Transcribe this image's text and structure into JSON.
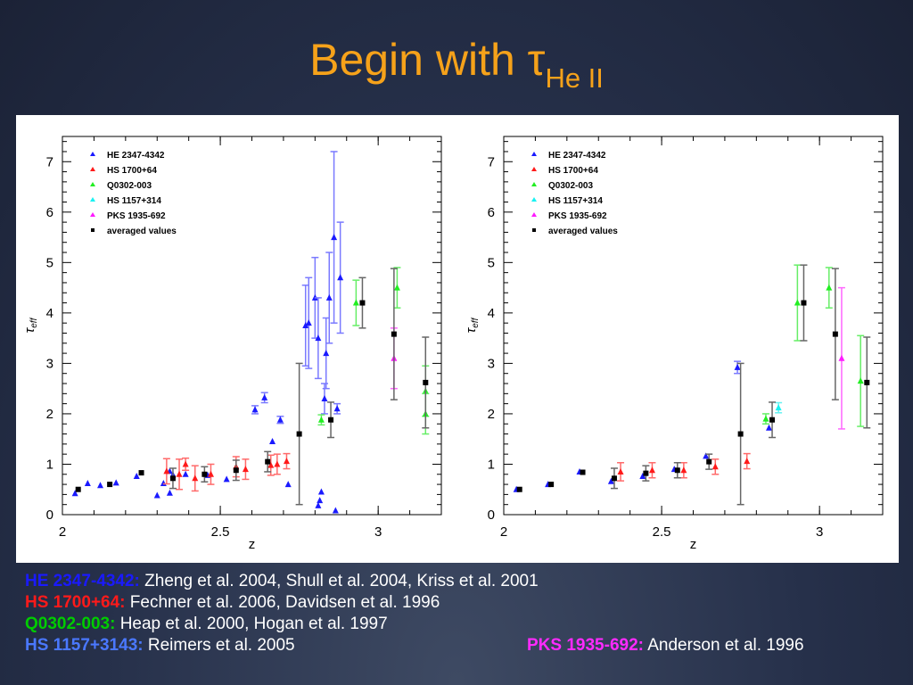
{
  "title": {
    "main": "Begin with τ",
    "sub": "He II"
  },
  "colors": {
    "title": "#f6a21a",
    "HE": "#1a1aff",
    "HS1700": "#ff1a1a",
    "Q0302": "#22ee22",
    "HS1157": "#19f2f2",
    "PKS": "#ff1aff",
    "avg": "#000000"
  },
  "references": [
    {
      "name": "HE 2347-4342:",
      "text": "Zheng et al. 2004, Shull et al. 2004, Kriss et al. 2001",
      "color": "#1a1aff"
    },
    {
      "name": "HS 1700+64:",
      "text": "Fechner et al. 2006, Davidsen et al. 1996",
      "color": "#ff1a1a"
    },
    {
      "name": "Q0302-003:",
      "text": "Heap et al. 2000, Hogan et al. 1997",
      "color": "#00cc00"
    },
    {
      "name": "HS 1157+3143:",
      "text": "Reimers et al. 2005",
      "color": "#4a78ff"
    },
    {
      "name": "PKS 1935-692:",
      "text": "Anderson et al. 1996",
      "color": "#ff2aff"
    }
  ],
  "chart_data": [
    {
      "type": "scatter",
      "xlabel": "z",
      "ylabel": "τ_eff",
      "xlim": [
        2.0,
        3.2
      ],
      "ylim": [
        0,
        7.5
      ],
      "xticks": [
        "2",
        "2.5",
        "3"
      ],
      "yticks": [
        "0",
        "1",
        "2",
        "3",
        "4",
        "5",
        "6",
        "7"
      ],
      "legend": [
        "HE 2347-4342",
        "HS 1700+64",
        "Q0302-003",
        "HS 1157+314",
        "PKS 1935-692",
        "averaged values"
      ],
      "series": [
        {
          "name": "HE 2347-4342",
          "key": "HE",
          "marker": "triangle",
          "points": [
            {
              "x": 2.04,
              "y": 0.42,
              "e": 0.03
            },
            {
              "x": 2.08,
              "y": 0.62,
              "e": 0.03
            },
            {
              "x": 2.12,
              "y": 0.58,
              "e": 0.03
            },
            {
              "x": 2.17,
              "y": 0.63,
              "e": 0.03
            },
            {
              "x": 2.235,
              "y": 0.76,
              "e": 0.03
            },
            {
              "x": 2.3,
              "y": 0.38,
              "e": 0.05
            },
            {
              "x": 2.32,
              "y": 0.62,
              "e": 0.04
            },
            {
              "x": 2.34,
              "y": 0.43,
              "e": 0.04
            },
            {
              "x": 2.34,
              "y": 0.86,
              "e": 0.05
            },
            {
              "x": 2.35,
              "y": 0.79,
              "e": 0.04
            },
            {
              "x": 2.39,
              "y": 0.8,
              "e": 0.04
            },
            {
              "x": 2.46,
              "y": 0.78,
              "e": 0.05
            },
            {
              "x": 2.52,
              "y": 0.7,
              "e": 0.05
            },
            {
              "x": 2.61,
              "y": 2.08,
              "e": 0.08
            },
            {
              "x": 2.64,
              "y": 2.32,
              "e": 0.1
            },
            {
              "x": 2.665,
              "y": 1.45,
              "e": 0.06
            },
            {
              "x": 2.69,
              "y": 1.88,
              "e": 0.07
            },
            {
              "x": 2.715,
              "y": 0.6,
              "e": 0.05
            },
            {
              "x": 2.77,
              "y": 3.75,
              "e": 0.8
            },
            {
              "x": 2.78,
              "y": 3.8,
              "e": 0.9
            },
            {
              "x": 2.8,
              "y": 4.3,
              "e": 0.8
            },
            {
              "x": 2.81,
              "y": 3.5,
              "e": 0.8
            },
            {
              "x": 2.81,
              "y": 0.18,
              "e": 0.05
            },
            {
              "x": 2.815,
              "y": 0.28,
              "e": 0.05
            },
            {
              "x": 2.82,
              "y": 0.45,
              "e": 0.05
            },
            {
              "x": 2.83,
              "y": 2.3,
              "e": 0.3
            },
            {
              "x": 2.835,
              "y": 3.2,
              "e": 0.7
            },
            {
              "x": 2.845,
              "y": 4.3,
              "e": 0.9
            },
            {
              "x": 2.86,
              "y": 5.5,
              "e": 1.7
            },
            {
              "x": 2.865,
              "y": 0.08,
              "e": 0.03
            },
            {
              "x": 2.87,
              "y": 2.1,
              "e": 0.1
            },
            {
              "x": 2.88,
              "y": 4.7,
              "e": 1.1
            }
          ]
        },
        {
          "name": "HS 1700+64",
          "key": "HS1700",
          "marker": "triangle",
          "points": [
            {
              "x": 2.33,
              "y": 0.86,
              "e": 0.25
            },
            {
              "x": 2.37,
              "y": 0.8,
              "e": 0.3
            },
            {
              "x": 2.39,
              "y": 1.0,
              "e": 0.12
            },
            {
              "x": 2.42,
              "y": 0.72,
              "e": 0.25
            },
            {
              "x": 2.47,
              "y": 0.8,
              "e": 0.2
            },
            {
              "x": 2.55,
              "y": 0.95,
              "e": 0.2
            },
            {
              "x": 2.58,
              "y": 0.9,
              "e": 0.2
            },
            {
              "x": 2.66,
              "y": 0.98,
              "e": 0.2
            },
            {
              "x": 2.68,
              "y": 1.0,
              "e": 0.2
            },
            {
              "x": 2.71,
              "y": 1.06,
              "e": 0.15
            }
          ]
        },
        {
          "name": "Q0302-003",
          "key": "Q0302",
          "marker": "triangle",
          "points": [
            {
              "x": 2.82,
              "y": 1.88,
              "e": 0.1
            },
            {
              "x": 2.93,
              "y": 4.2,
              "e": 0.45
            },
            {
              "x": 3.06,
              "y": 4.5,
              "e": 0.4
            },
            {
              "x": 3.15,
              "y": 2.45,
              "e": 0.5
            },
            {
              "x": 3.15,
              "y": 2.0,
              "e": 0.4
            }
          ]
        },
        {
          "name": "PKS 1935-692",
          "key": "PKS",
          "marker": "triangle",
          "points": [
            {
              "x": 3.05,
              "y": 3.1,
              "e": 0.6
            }
          ]
        },
        {
          "name": "averaged values",
          "key": "avg",
          "marker": "square",
          "points": [
            {
              "x": 2.05,
              "y": 0.5,
              "e": 0.03
            },
            {
              "x": 2.15,
              "y": 0.6,
              "e": 0.03
            },
            {
              "x": 2.25,
              "y": 0.83,
              "e": 0.04
            },
            {
              "x": 2.35,
              "y": 0.72,
              "e": 0.2
            },
            {
              "x": 2.45,
              "y": 0.8,
              "e": 0.15
            },
            {
              "x": 2.55,
              "y": 0.88,
              "e": 0.2
            },
            {
              "x": 2.65,
              "y": 1.05,
              "e": 0.2
            },
            {
              "x": 2.75,
              "y": 1.6,
              "e": 1.4
            },
            {
              "x": 2.85,
              "y": 1.88,
              "e": 0.35
            },
            {
              "x": 2.95,
              "y": 4.2,
              "e": 0.5
            },
            {
              "x": 3.05,
              "y": 3.58,
              "e": 1.3
            },
            {
              "x": 3.15,
              "y": 2.62,
              "e": 0.9
            }
          ]
        }
      ]
    },
    {
      "type": "scatter",
      "xlabel": "z",
      "ylabel": "τ_eff",
      "xlim": [
        2.0,
        3.2
      ],
      "ylim": [
        0,
        7.5
      ],
      "xticks": [
        "2",
        "2.5",
        "3"
      ],
      "yticks": [
        "0",
        "1",
        "2",
        "3",
        "4",
        "5",
        "6",
        "7"
      ],
      "legend": [
        "HE 2347-4342",
        "HS 1700+64",
        "Q0302-003",
        "HS 1157+314",
        "PKS 1935-692",
        "averaged values"
      ],
      "series": [
        {
          "name": "HE 2347-4342",
          "key": "HE",
          "marker": "triangle",
          "points": [
            {
              "x": 2.04,
              "y": 0.5,
              "e": 0.03
            },
            {
              "x": 2.14,
              "y": 0.6,
              "e": 0.03
            },
            {
              "x": 2.24,
              "y": 0.85,
              "e": 0.03
            },
            {
              "x": 2.34,
              "y": 0.66,
              "e": 0.03
            },
            {
              "x": 2.44,
              "y": 0.76,
              "e": 0.03
            },
            {
              "x": 2.54,
              "y": 0.9,
              "e": 0.03
            },
            {
              "x": 2.64,
              "y": 1.16,
              "e": 0.03
            },
            {
              "x": 2.74,
              "y": 2.92,
              "e": 0.12
            },
            {
              "x": 2.84,
              "y": 1.72,
              "e": 0.06
            }
          ]
        },
        {
          "name": "HS 1700+64",
          "key": "HS1700",
          "marker": "triangle",
          "points": [
            {
              "x": 2.37,
              "y": 0.85,
              "e": 0.18
            },
            {
              "x": 2.47,
              "y": 0.88,
              "e": 0.15
            },
            {
              "x": 2.57,
              "y": 0.88,
              "e": 0.15
            },
            {
              "x": 2.67,
              "y": 0.95,
              "e": 0.15
            },
            {
              "x": 2.77,
              "y": 1.06,
              "e": 0.15
            }
          ]
        },
        {
          "name": "Q0302-003",
          "key": "Q0302",
          "marker": "triangle",
          "points": [
            {
              "x": 2.83,
              "y": 1.9,
              "e": 0.1
            },
            {
              "x": 2.93,
              "y": 4.2,
              "e": 0.75
            },
            {
              "x": 3.03,
              "y": 4.5,
              "e": 0.4
            },
            {
              "x": 3.13,
              "y": 2.65,
              "e": 0.9
            }
          ]
        },
        {
          "name": "HS 1157+314",
          "key": "HS1157",
          "marker": "triangle",
          "points": [
            {
              "x": 2.87,
              "y": 2.12,
              "e": 0.1
            }
          ]
        },
        {
          "name": "PKS 1935-692",
          "key": "PKS",
          "marker": "triangle",
          "points": [
            {
              "x": 3.07,
              "y": 3.1,
              "e": 1.4
            }
          ]
        },
        {
          "name": "averaged values",
          "key": "avg",
          "marker": "square",
          "points": [
            {
              "x": 2.05,
              "y": 0.5,
              "e": 0.03
            },
            {
              "x": 2.15,
              "y": 0.6,
              "e": 0.03
            },
            {
              "x": 2.25,
              "y": 0.84,
              "e": 0.03
            },
            {
              "x": 2.35,
              "y": 0.72,
              "e": 0.2
            },
            {
              "x": 2.45,
              "y": 0.82,
              "e": 0.15
            },
            {
              "x": 2.55,
              "y": 0.88,
              "e": 0.15
            },
            {
              "x": 2.65,
              "y": 1.05,
              "e": 0.15
            },
            {
              "x": 2.75,
              "y": 1.6,
              "e": 1.4
            },
            {
              "x": 2.85,
              "y": 1.88,
              "e": 0.35
            },
            {
              "x": 2.95,
              "y": 4.2,
              "e": 0.75
            },
            {
              "x": 3.05,
              "y": 3.58,
              "e": 1.3
            },
            {
              "x": 3.15,
              "y": 2.62,
              "e": 0.9
            }
          ]
        }
      ]
    }
  ]
}
